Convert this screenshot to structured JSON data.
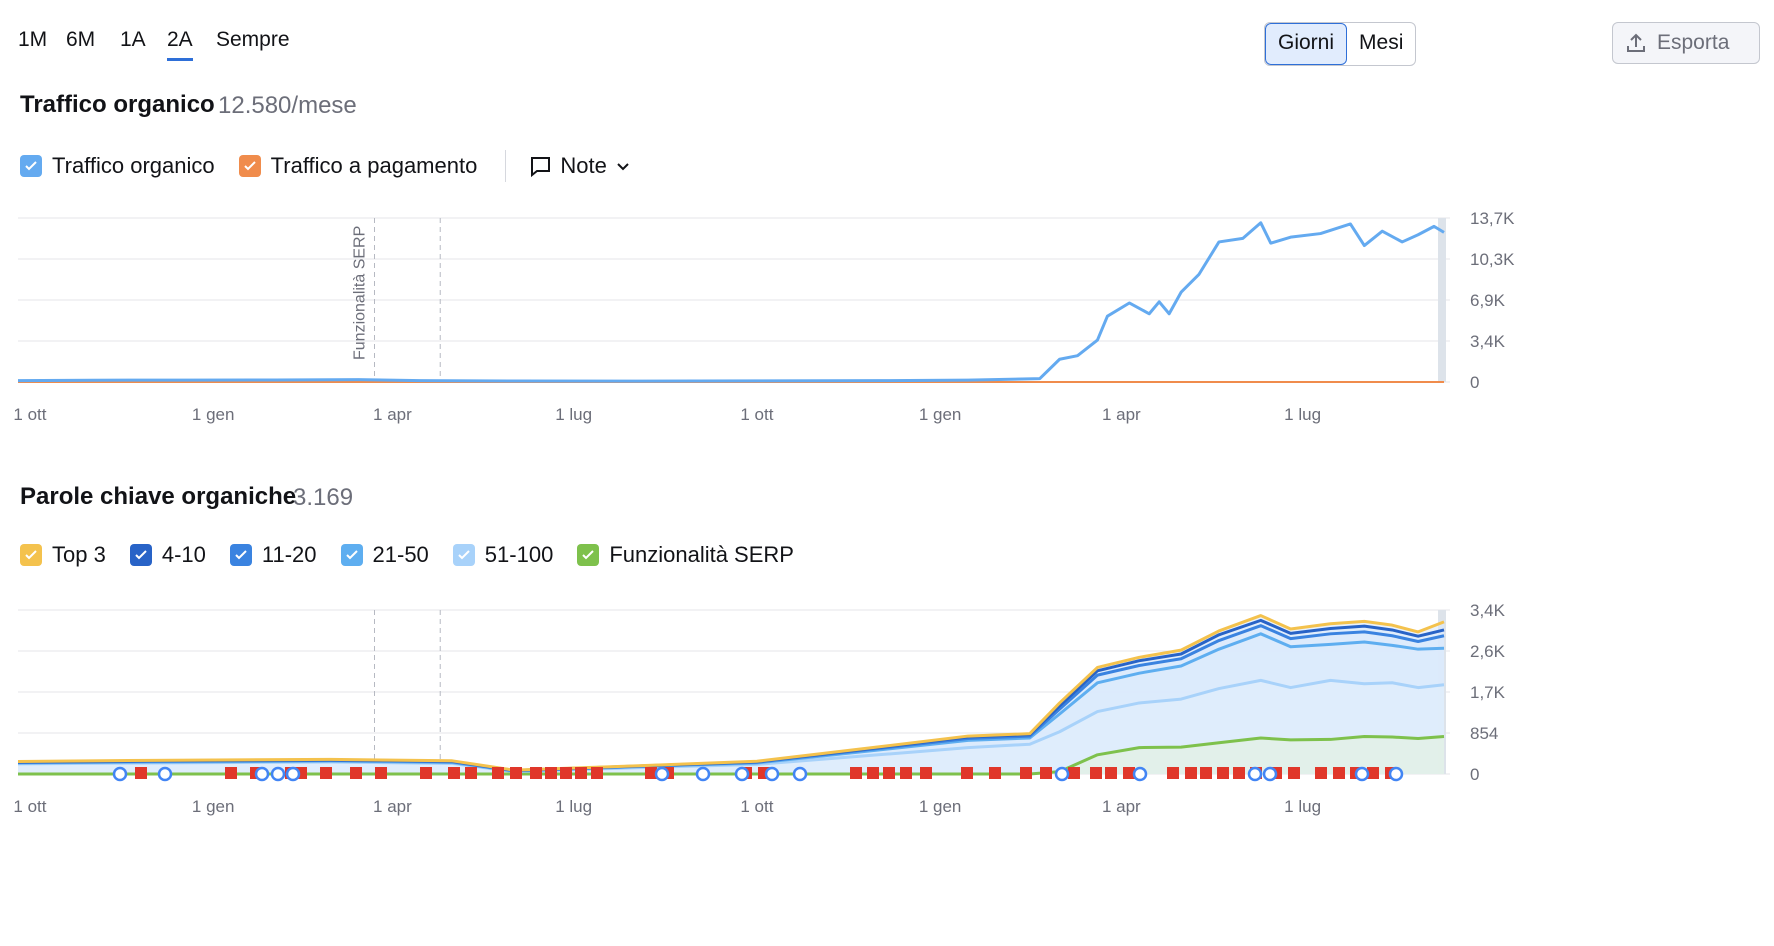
{
  "range_tabs": [
    "1M",
    "6M",
    "1A",
    "2A",
    "Sempre"
  ],
  "active_range": "2A",
  "granularity": {
    "days": "Giorni",
    "months": "Mesi",
    "active": "Giorni"
  },
  "export_label": "Esporta",
  "traffic": {
    "title": "Traffico organico",
    "metric": "12.580/mese",
    "legend": {
      "organic": "Traffico organico",
      "paid": "Traffico a pagamento",
      "notes": "Note"
    },
    "annotation": "Funzionalità SERP"
  },
  "keywords": {
    "title": "Parole chiave organiche",
    "metric": "3.169",
    "legend": [
      "Top 3",
      "4-10",
      "11-20",
      "21-50",
      "51-100",
      "Funzionalità SERP"
    ]
  },
  "colors": {
    "organic": "#64aaf0",
    "paid": "#f08c4c",
    "top3": "#f4c24d",
    "r4_10": "#2863c7",
    "r11_20": "#3a83e0",
    "r21_50": "#5eaef0",
    "r51_100": "#a8d2fa",
    "serp": "#7ec14c",
    "accent": "#2e6fd8",
    "flag": "#e0372a"
  },
  "chart_data": [
    {
      "type": "line",
      "title": "Traffico organico",
      "x_ticks": [
        "1 ott",
        "1 gen",
        "1 apr",
        "1 lug",
        "1 ott",
        "1 gen",
        "1 apr",
        "1 lug"
      ],
      "y_ticks": [
        "0",
        "3,4K",
        "6,9K",
        "10,3K",
        "13,7K"
      ],
      "ylim": [
        0,
        13700
      ],
      "x_range": [
        "2022-09-25",
        "2024-09-10"
      ],
      "annotations": [
        {
          "date": "2023-03-23",
          "label": "Funzionalità SERP"
        },
        {
          "date": "2023-04-25",
          "label": ""
        }
      ],
      "series": [
        {
          "name": "Traffico organico",
          "points": [
            [
              "2022-09-25",
              120
            ],
            [
              "2022-11-01",
              150
            ],
            [
              "2022-12-15",
              160
            ],
            [
              "2023-02-01",
              170
            ],
            [
              "2023-03-15",
              200
            ],
            [
              "2023-04-15",
              110
            ],
            [
              "2023-06-01",
              80
            ],
            [
              "2023-08-01",
              70
            ],
            [
              "2023-10-01",
              90
            ],
            [
              "2023-12-01",
              110
            ],
            [
              "2024-01-15",
              160
            ],
            [
              "2024-02-20",
              280
            ],
            [
              "2024-03-01",
              1900
            ],
            [
              "2024-03-10",
              2200
            ],
            [
              "2024-03-20",
              3500
            ],
            [
              "2024-03-25",
              5500
            ],
            [
              "2024-04-05",
              6600
            ],
            [
              "2024-04-15",
              5700
            ],
            [
              "2024-04-20",
              6700
            ],
            [
              "2024-04-25",
              5700
            ],
            [
              "2024-05-01",
              7500
            ],
            [
              "2024-05-10",
              9000
            ],
            [
              "2024-05-20",
              11700
            ],
            [
              "2024-06-01",
              12000
            ],
            [
              "2024-06-10",
              13300
            ],
            [
              "2024-06-15",
              11600
            ],
            [
              "2024-06-25",
              12100
            ],
            [
              "2024-07-10",
              12400
            ],
            [
              "2024-07-25",
              13200
            ],
            [
              "2024-08-01",
              11400
            ],
            [
              "2024-08-10",
              12600
            ],
            [
              "2024-08-20",
              11700
            ],
            [
              "2024-08-28",
              12300
            ],
            [
              "2024-09-05",
              13000
            ],
            [
              "2024-09-10",
              12500
            ]
          ]
        },
        {
          "name": "Traffico a pagamento",
          "points": [
            [
              "2022-09-25",
              0
            ],
            [
              "2024-09-10",
              0
            ]
          ]
        }
      ]
    },
    {
      "type": "area",
      "title": "Parole chiave organiche",
      "x_ticks": [
        "1 ott",
        "1 gen",
        "1 apr",
        "1 lug",
        "1 ott",
        "1 gen",
        "1 apr",
        "1 lug"
      ],
      "y_ticks": [
        "0",
        "854",
        "1,7K",
        "2,6K",
        "3,4K"
      ],
      "ylim": [
        0,
        3416
      ],
      "x_range": [
        "2022-09-25",
        "2024-09-10"
      ],
      "x": [
        "2022-09-25",
        "2022-12-01",
        "2023-03-01",
        "2023-05-01",
        "2023-06-01",
        "2023-08-01",
        "2023-10-01",
        "2023-12-01",
        "2024-01-15",
        "2024-02-15",
        "2024-03-01",
        "2024-03-20",
        "2024-04-10",
        "2024-05-01",
        "2024-05-20",
        "2024-06-10",
        "2024-06-25",
        "2024-07-15",
        "2024-08-01",
        "2024-08-15",
        "2024-08-28",
        "2024-09-10"
      ],
      "series": [
        {
          "name": "Funzionalità SERP",
          "values": [
            0,
            0,
            0,
            0,
            0,
            0,
            0,
            0,
            0,
            0,
            50,
            400,
            550,
            560,
            650,
            750,
            710,
            720,
            780,
            770,
            740,
            780
          ]
        },
        {
          "name": "51-100",
          "values": [
            210,
            230,
            250,
            220,
            50,
            130,
            200,
            400,
            550,
            620,
            880,
            1300,
            1480,
            1560,
            1780,
            1950,
            1800,
            1950,
            1880,
            1900,
            1800,
            1860
          ]
        },
        {
          "name": "21-50",
          "values": [
            230,
            250,
            270,
            240,
            60,
            150,
            230,
            500,
            700,
            750,
            1250,
            1900,
            2100,
            2250,
            2600,
            2920,
            2650,
            2700,
            2750,
            2680,
            2600,
            2620
          ]
        },
        {
          "name": "11-20",
          "values": [
            240,
            265,
            285,
            255,
            70,
            160,
            245,
            530,
            740,
            790,
            1350,
            2060,
            2260,
            2400,
            2780,
            3090,
            2820,
            2920,
            2960,
            2880,
            2760,
            2880
          ]
        },
        {
          "name": "4-10",
          "values": [
            250,
            275,
            295,
            265,
            75,
            165,
            255,
            550,
            770,
            820,
            1420,
            2150,
            2360,
            2500,
            2900,
            3200,
            2930,
            3030,
            3080,
            3000,
            2870,
            3000
          ]
        },
        {
          "name": "Top 3",
          "values": [
            260,
            285,
            305,
            275,
            80,
            170,
            265,
            565,
            790,
            840,
            1480,
            2220,
            2430,
            2580,
            2980,
            3300,
            3020,
            3130,
            3180,
            3100,
            2960,
            3169
          ]
        }
      ],
      "annotations": [
        {
          "date": "2023-03-23",
          "label": ""
        },
        {
          "date": "2023-04-25",
          "label": ""
        }
      ]
    }
  ]
}
